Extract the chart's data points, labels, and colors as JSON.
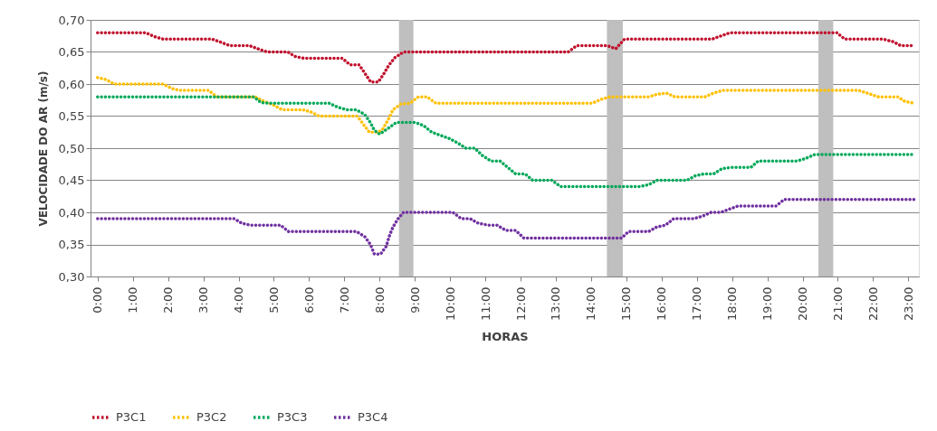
{
  "chart_data": {
    "type": "line",
    "xlabel": "HORAS",
    "ylabel": "VELOCIDADE DO AR (m/s)",
    "xlim": [
      -0.2,
      23.3
    ],
    "xticks": [
      {
        "value": 0,
        "label": "0:00"
      },
      {
        "value": 1,
        "label": "1:00"
      },
      {
        "value": 2,
        "label": "2:00"
      },
      {
        "value": 3,
        "label": "3:00"
      },
      {
        "value": 4,
        "label": "4:00"
      },
      {
        "value": 5,
        "label": "5:00"
      },
      {
        "value": 6,
        "label": "6:00"
      },
      {
        "value": 7,
        "label": "7:00"
      },
      {
        "value": 8,
        "label": "8:00"
      },
      {
        "value": 9,
        "label": "9:00"
      },
      {
        "value": 10,
        "label": "10:00"
      },
      {
        "value": 11,
        "label": "11:00"
      },
      {
        "value": 12,
        "label": "12:00"
      },
      {
        "value": 13,
        "label": "13:00"
      },
      {
        "value": 14,
        "label": "14:00"
      },
      {
        "value": 15,
        "label": "15:00"
      },
      {
        "value": 16,
        "label": "16:00"
      },
      {
        "value": 17,
        "label": "17:00"
      },
      {
        "value": 18,
        "label": "18:00"
      },
      {
        "value": 19,
        "label": "19:00"
      },
      {
        "value": 20,
        "label": "20:00"
      },
      {
        "value": 21,
        "label": "21:00"
      },
      {
        "value": 22,
        "label": "22:00"
      },
      {
        "value": 23,
        "label": "23:00"
      }
    ],
    "ylim": [
      0.3,
      0.7
    ],
    "yticks": [
      {
        "value": 0.3,
        "label": "0,30"
      },
      {
        "value": 0.35,
        "label": "0,35"
      },
      {
        "value": 0.4,
        "label": "0,40"
      },
      {
        "value": 0.45,
        "label": "0,45"
      },
      {
        "value": 0.5,
        "label": "0,50"
      },
      {
        "value": 0.55,
        "label": "0,55"
      },
      {
        "value": 0.6,
        "label": "0,60"
      },
      {
        "value": 0.65,
        "label": "0,65"
      },
      {
        "value": 0.7,
        "label": "0,70"
      }
    ],
    "grid": "y",
    "legend": "bottom",
    "line_style": "dotted",
    "marker": "none",
    "bands": [
      {
        "axis": "x",
        "from": 8.55,
        "to": 8.96,
        "color": "#bfbfbf"
      },
      {
        "axis": "x",
        "from": 14.45,
        "to": 14.9,
        "color": "#bfbfbf"
      },
      {
        "axis": "x",
        "from": 20.45,
        "to": 20.87,
        "color": "#bfbfbf"
      }
    ],
    "series": [
      {
        "name": "P3C1",
        "color": "#c0102c",
        "x": [
          0,
          1.36,
          1.61,
          1.86,
          3.25,
          3.5,
          3.74,
          4.3,
          4.54,
          4.81,
          5.4,
          5.6,
          5.86,
          6.95,
          7.16,
          7.42,
          7.58,
          7.75,
          7.96,
          8.11,
          8.26,
          8.43,
          8.68,
          13.35,
          13.6,
          14.45,
          14.7,
          14.95,
          17.44,
          17.69,
          17.94,
          20.97,
          21.2,
          22.28,
          22.57,
          22.78,
          23.16
        ],
        "values": [
          0.68,
          0.68,
          0.674,
          0.67,
          0.67,
          0.665,
          0.66,
          0.66,
          0.655,
          0.65,
          0.65,
          0.643,
          0.64,
          0.64,
          0.63,
          0.63,
          0.617,
          0.603,
          0.603,
          0.615,
          0.629,
          0.641,
          0.65,
          0.65,
          0.66,
          0.66,
          0.655,
          0.67,
          0.67,
          0.675,
          0.68,
          0.68,
          0.67,
          0.67,
          0.666,
          0.66,
          0.66
        ]
      },
      {
        "name": "P3C2",
        "color": "#ffc000",
        "x": [
          0,
          0.24,
          0.47,
          1.86,
          2.11,
          2.35,
          3.16,
          3.38,
          4.47,
          4.72,
          4.97,
          5.23,
          5.82,
          6.07,
          6.28,
          7.37,
          7.54,
          7.71,
          7.96,
          8.09,
          8.26,
          8.38,
          8.61,
          8.86,
          9.1,
          9.35,
          9.6,
          14.03,
          14.28,
          14.53,
          15.63,
          15.88,
          16.13,
          16.38,
          17.23,
          17.48,
          17.73,
          21.6,
          21.88,
          22.15,
          22.7,
          22.9,
          23.16
        ],
        "values": [
          0.61,
          0.607,
          0.6,
          0.6,
          0.593,
          0.59,
          0.59,
          0.58,
          0.58,
          0.573,
          0.568,
          0.56,
          0.56,
          0.556,
          0.55,
          0.55,
          0.537,
          0.525,
          0.525,
          0.53,
          0.546,
          0.56,
          0.569,
          0.57,
          0.58,
          0.58,
          0.57,
          0.57,
          0.576,
          0.58,
          0.58,
          0.584,
          0.586,
          0.58,
          0.58,
          0.586,
          0.59,
          0.59,
          0.585,
          0.58,
          0.58,
          0.573,
          0.57
        ]
      },
      {
        "name": "P3C3",
        "color": "#00a859",
        "x": [
          0,
          4.43,
          4.64,
          4.89,
          6.57,
          6.81,
          7.06,
          7.33,
          7.57,
          7.74,
          7.85,
          8.0,
          8.22,
          8.47,
          9.02,
          9.25,
          9.48,
          9.73,
          9.98,
          10.22,
          10.45,
          10.7,
          10.93,
          11.16,
          11.42,
          11.64,
          11.86,
          12.13,
          12.34,
          12.89,
          13.14,
          15.37,
          15.63,
          15.88,
          16.72,
          16.96,
          17.21,
          17.48,
          17.71,
          17.97,
          18.53,
          18.74,
          19.84,
          20.09,
          20.34,
          23.16
        ],
        "values": [
          0.58,
          0.58,
          0.571,
          0.57,
          0.57,
          0.564,
          0.56,
          0.56,
          0.553,
          0.54,
          0.528,
          0.522,
          0.53,
          0.54,
          0.54,
          0.535,
          0.525,
          0.52,
          0.515,
          0.508,
          0.5,
          0.5,
          0.488,
          0.48,
          0.48,
          0.47,
          0.46,
          0.46,
          0.45,
          0.45,
          0.44,
          0.44,
          0.443,
          0.45,
          0.45,
          0.457,
          0.46,
          0.46,
          0.468,
          0.47,
          0.47,
          0.48,
          0.48,
          0.484,
          0.49,
          0.49
        ]
      },
      {
        "name": "P3C4",
        "color": "#7030a0",
        "x": [
          0,
          3.88,
          4.09,
          4.34,
          5.19,
          5.42,
          7.35,
          7.58,
          7.74,
          7.85,
          8.03,
          8.19,
          8.27,
          8.37,
          8.51,
          8.68,
          10.08,
          10.32,
          10.57,
          10.8,
          11.08,
          11.33,
          11.58,
          11.86,
          12.09,
          14.87,
          15.06,
          15.63,
          15.86,
          16.11,
          16.34,
          16.9,
          17.16,
          17.41,
          17.69,
          17.92,
          18.18,
          19.25,
          19.48,
          23.16
        ],
        "values": [
          0.39,
          0.39,
          0.383,
          0.38,
          0.38,
          0.37,
          0.37,
          0.362,
          0.35,
          0.335,
          0.335,
          0.347,
          0.362,
          0.376,
          0.389,
          0.4,
          0.4,
          0.39,
          0.39,
          0.383,
          0.38,
          0.38,
          0.372,
          0.372,
          0.36,
          0.36,
          0.37,
          0.37,
          0.377,
          0.38,
          0.39,
          0.39,
          0.394,
          0.4,
          0.4,
          0.405,
          0.41,
          0.41,
          0.42,
          0.42
        ]
      }
    ]
  }
}
